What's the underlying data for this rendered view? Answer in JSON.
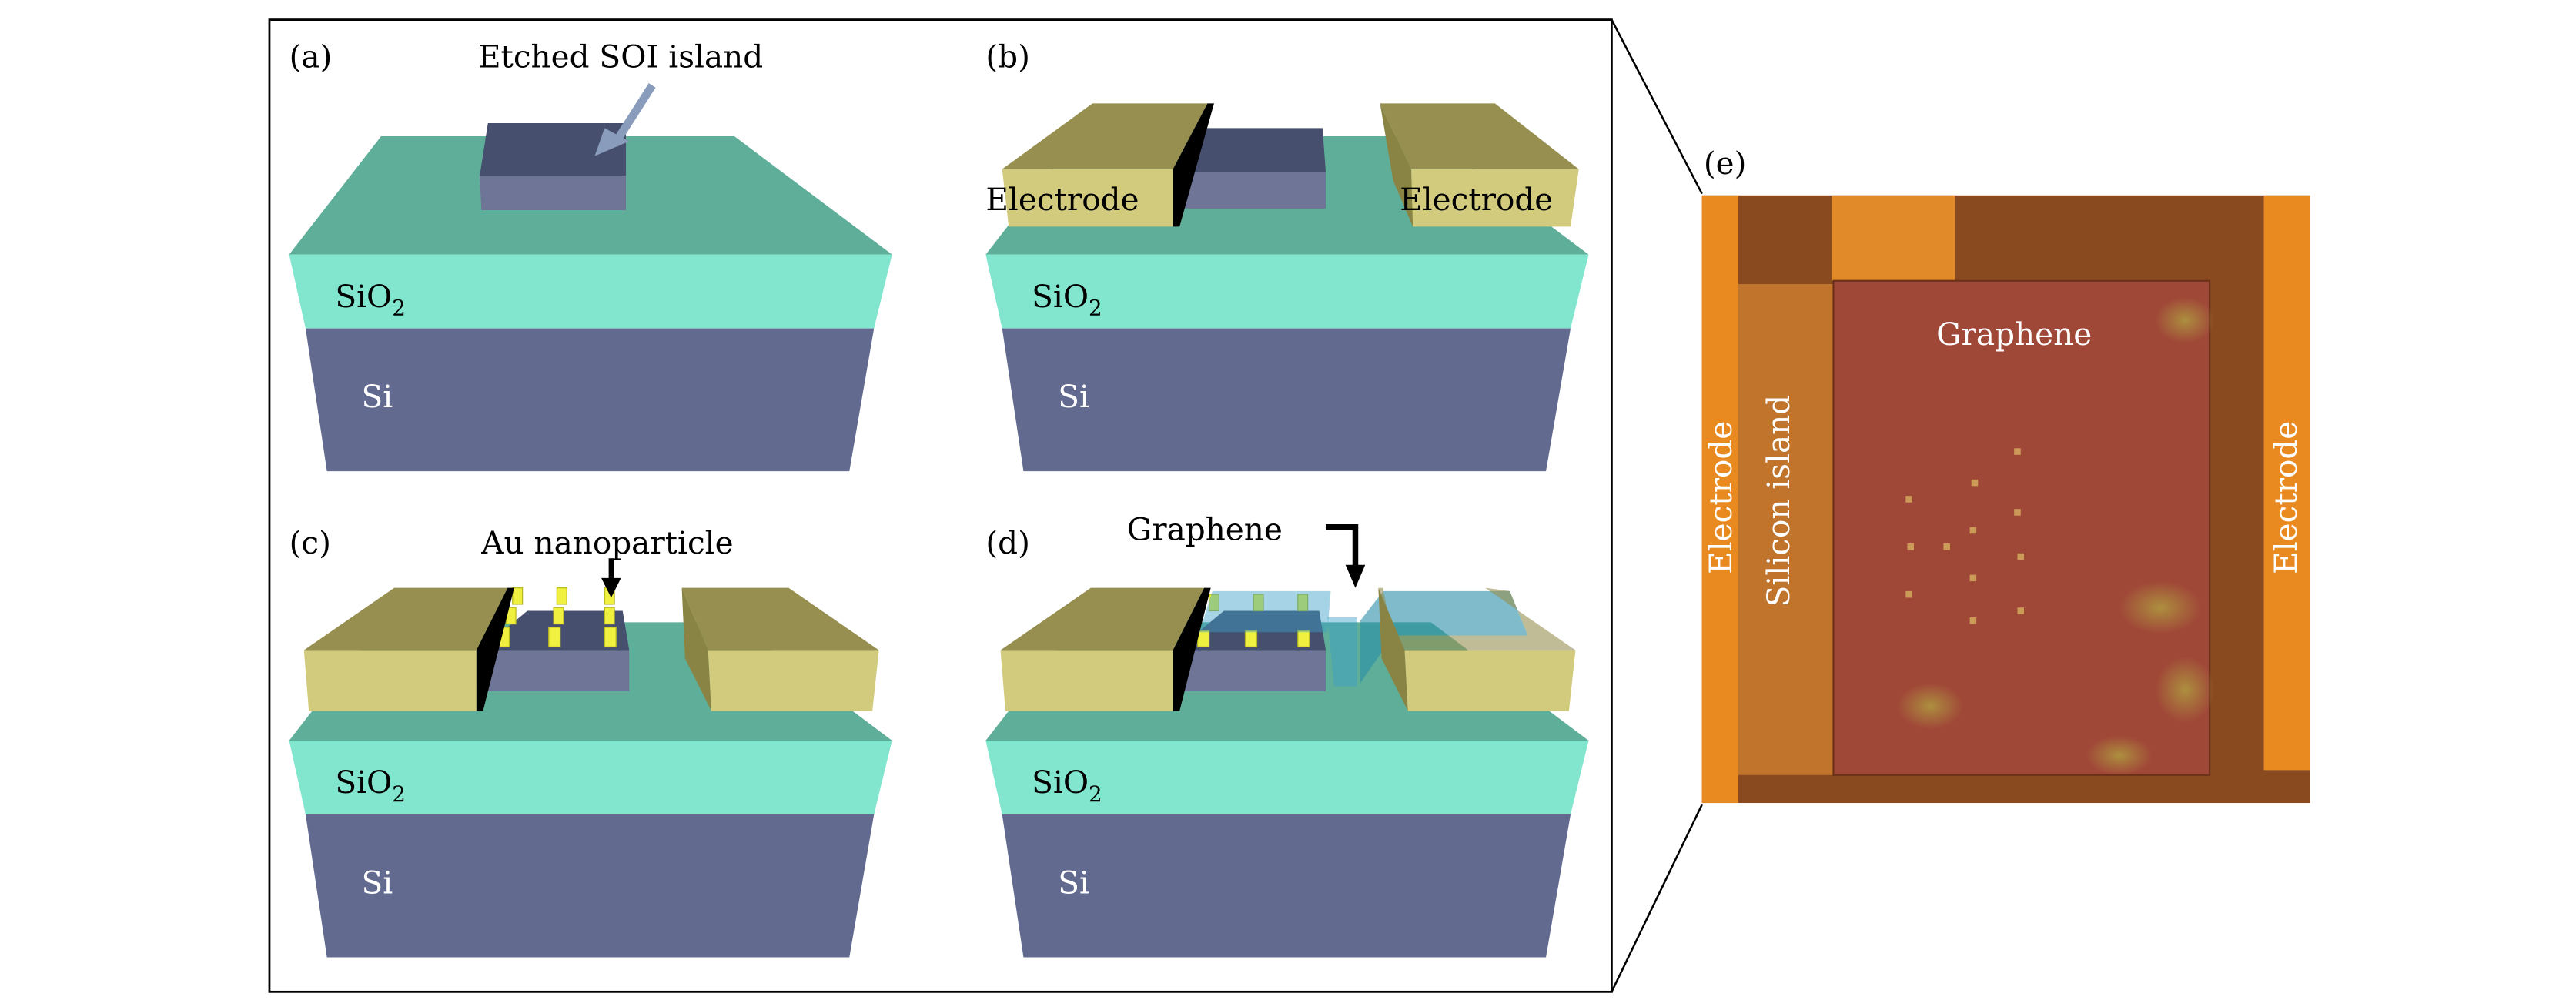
{
  "panels": {
    "a": {
      "label": "(a)",
      "annotation": "Etched SOI island",
      "sio2": "SiO",
      "sio2_sub": "2",
      "si": "Si"
    },
    "b": {
      "label": "(b)",
      "electrode_left": "Electrode",
      "electrode_right": "Electrode",
      "sio2": "SiO",
      "sio2_sub": "2",
      "si": "Si"
    },
    "c": {
      "label": "(c)",
      "annotation": "Au nanoparticle",
      "sio2": "SiO",
      "sio2_sub": "2",
      "si": "Si"
    },
    "d": {
      "label": "(d)",
      "annotation": "Graphene",
      "sio2": "SiO",
      "sio2_sub": "2",
      "si": "Si"
    },
    "e": {
      "label": "(e)",
      "graphene": "Graphene",
      "electrode_left": "Electrode",
      "silicon_island": "Silicon island",
      "electrode_right": "Electrode"
    }
  },
  "colors": {
    "substrate_top": "#5fae99",
    "sio2": "#82e6cf",
    "si": "#626b8f",
    "island_top": "#474f6e",
    "island_front": "#6e7596",
    "electrode_top": "#968f50",
    "electrode_front": "#d2ca7c",
    "nanoparticle": "#f0f040",
    "graphene_overlay": "#3aa0c8",
    "photo_background": "#8a4a20",
    "photo_electrode": "#e88a20",
    "photo_graphene": "#a04838"
  }
}
